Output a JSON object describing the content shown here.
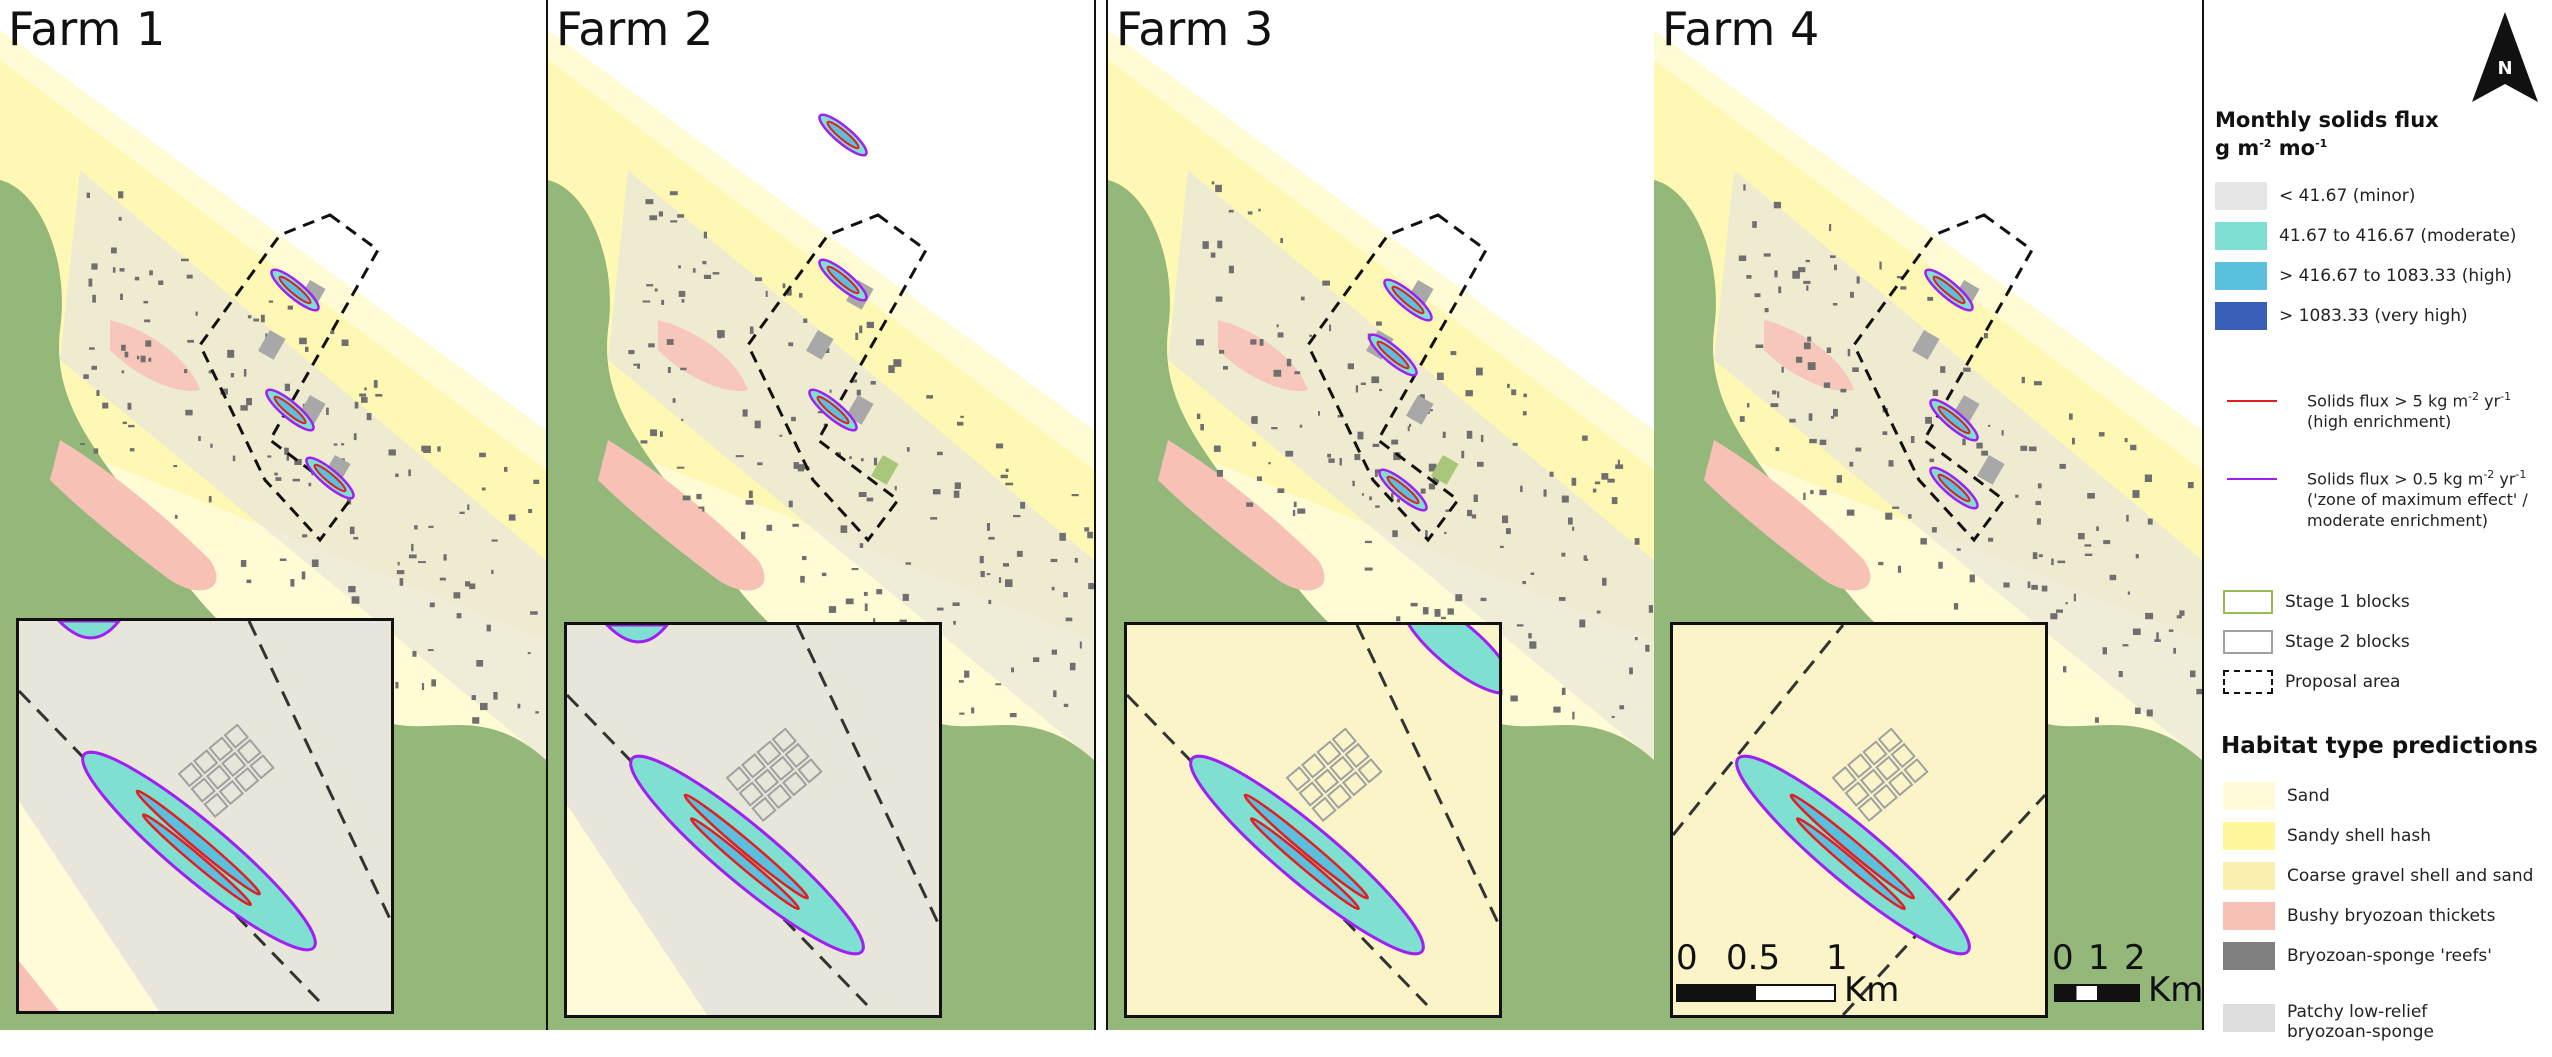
{
  "farms": [
    {
      "title": "Farm 1"
    },
    {
      "title": "Farm 2"
    },
    {
      "title": "Farm 3"
    },
    {
      "title": "Farm 4"
    }
  ],
  "scalebars": [
    {
      "ticks": [
        "0",
        "0.5",
        "1"
      ],
      "unit": "Km"
    },
    {
      "ticks": [
        "0",
        "1",
        "2"
      ],
      "unit": "Km"
    }
  ],
  "north_arrow": {
    "label": "N"
  },
  "legend": {
    "flux_title": "Monthly solids flux",
    "flux_unit_g": "g m",
    "flux_unit_exp1": "-2",
    "flux_unit_mo": " mo",
    "flux_unit_exp2": "-1",
    "flux_classes": [
      {
        "label": "< 41.67 (minor)",
        "color": "#e6e6e6"
      },
      {
        "label": "41.67 to 416.67 (moderate)",
        "color": "#7fe0d2"
      },
      {
        "label": "> 416.67 to 1083.33 (high)",
        "color": "#5bc0de"
      },
      {
        "label": "> 1083.33 (very high)",
        "color": "#3a5fb8"
      }
    ],
    "contour_red": {
      "line1_a": "Solids flux > 5 kg m",
      "line1_exp1": "-2",
      "line1_b": " yr",
      "line1_exp2": "-1",
      "line2": "(high enrichment)",
      "color": "#e02020"
    },
    "contour_purple": {
      "line1_a": "Solids flux > 0.5 kg m",
      "line1_exp1": "-2",
      "line1_b": " yr",
      "line1_exp2": "-1",
      "line2": "('zone of maximum effect' /",
      "line3": "moderate enrichment)",
      "color": "#a020f0"
    },
    "blocks": [
      {
        "label": "Stage 1 blocks",
        "color": "#9aba5a"
      },
      {
        "label": "Stage 2 blocks",
        "color": "#a0a0a0"
      },
      {
        "label": "Proposal area",
        "color": "#111111"
      }
    ],
    "habitat_title": "Habitat type predictions",
    "habitats": [
      {
        "label": "Sand",
        "color": "#fffbd9"
      },
      {
        "label": "Sandy shell hash",
        "color": "#fff59a"
      },
      {
        "label": "Coarse gravel shell and sand",
        "color": "#fbefb0"
      },
      {
        "label": "Bushy bryozoan thickets",
        "color": "#f7c1b6"
      },
      {
        "label": "Bryozoan-sponge 'reefs'",
        "color": "#808080"
      },
      {
        "label": "Patchy low-relief",
        "label2": "bryozoan-sponge",
        "color": "#dddddd"
      }
    ]
  }
}
